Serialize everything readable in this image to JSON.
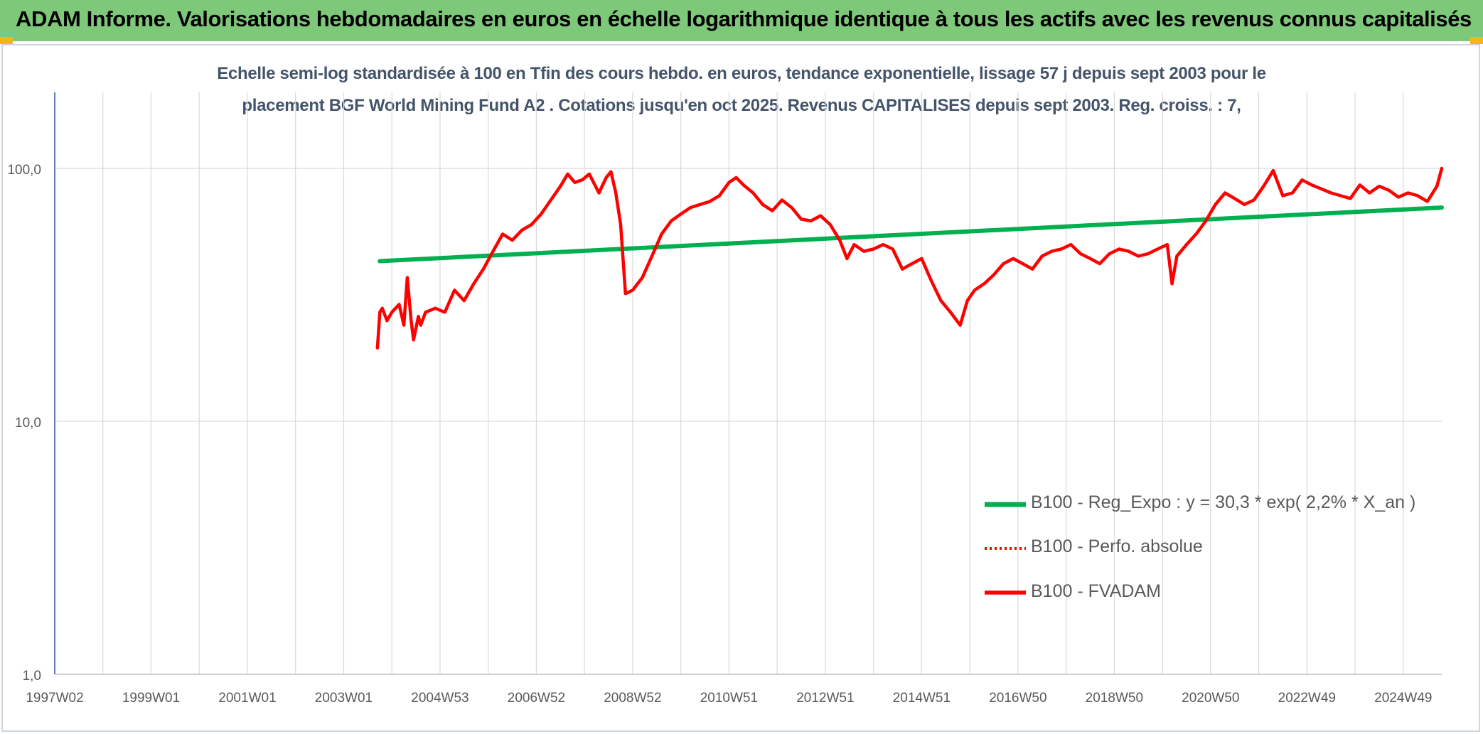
{
  "header": {
    "title": "ADAM Informe. Valorisations hebdomadaires en euros en échelle logarithmique identique à tous les actifs avec les revenus connus capitalisés"
  },
  "colors": {
    "header_band": "#7ec87a",
    "corner_accent": "#f2b51a",
    "subtitle_text": "#44546a",
    "reg_expo_series": "#00b050",
    "fvadam_series": "#ff0000",
    "grid": "#d9d9d9",
    "y_axis_line": "#2f5597"
  },
  "chart_data": {
    "type": "line",
    "title_line1": "Echelle semi-log standardisée à 100 en Tfin des cours hebdo. en euros, tendance exponentielle, lissage 57 j depuis sept 2003 pour le",
    "title_line2": "placement BGF World Mining Fund A2 . Cotations jusqu'en oct 2025. Revenus CAPITALISES depuis sept 2003. Reg. croiss. : 7,",
    "xlabel": "",
    "ylabel": "",
    "y_scale": "log",
    "ylim": [
      1,
      100
    ],
    "xlim": [
      1997.0,
      2025.8
    ],
    "grid": true,
    "legend_position": "lower-right",
    "y_ticks": [
      {
        "value": 1,
        "label": "1,0"
      },
      {
        "value": 10,
        "label": "10,0"
      },
      {
        "value": 100,
        "label": "100,0"
      }
    ],
    "x_ticks": [
      {
        "x": 1997.0,
        "label": "1997W02"
      },
      {
        "x": 1999.0,
        "label": "1999W01"
      },
      {
        "x": 2001.0,
        "label": "2001W01"
      },
      {
        "x": 2003.0,
        "label": "2003W01"
      },
      {
        "x": 2005.0,
        "label": "2004W53"
      },
      {
        "x": 2007.0,
        "label": "2006W52"
      },
      {
        "x": 2009.0,
        "label": "2008W52"
      },
      {
        "x": 2011.0,
        "label": "2010W51"
      },
      {
        "x": 2013.0,
        "label": "2012W51"
      },
      {
        "x": 2015.0,
        "label": "2014W51"
      },
      {
        "x": 2017.0,
        "label": "2016W50"
      },
      {
        "x": 2019.0,
        "label": "2018W50"
      },
      {
        "x": 2021.0,
        "label": "2020W50"
      },
      {
        "x": 2023.0,
        "label": "2022W49"
      },
      {
        "x": 2025.0,
        "label": "2024W49"
      }
    ],
    "series": [
      {
        "name": "B100 - Reg_Expo : y = 30,3 * exp( 2,2% *  X_an )",
        "style": "solid",
        "x": [
          2003.75,
          2025.8
        ],
        "y": [
          43.0,
          70.0
        ]
      },
      {
        "name": "B100 - Perfo. absolue",
        "style": "dotted",
        "x": [],
        "y": []
      },
      {
        "name": "B100 - FVADAM",
        "style": "solid",
        "x": [
          2003.7,
          2003.75,
          2003.8,
          2003.9,
          2004.0,
          2004.15,
          2004.25,
          2004.32,
          2004.4,
          2004.45,
          2004.55,
          2004.6,
          2004.7,
          2004.9,
          2005.1,
          2005.3,
          2005.5,
          2005.7,
          2005.9,
          2006.1,
          2006.3,
          2006.5,
          2006.7,
          2006.9,
          2007.1,
          2007.3,
          2007.5,
          2007.65,
          2007.8,
          2007.95,
          2008.1,
          2008.3,
          2008.45,
          2008.55,
          2008.65,
          2008.75,
          2008.85,
          2009.0,
          2009.2,
          2009.4,
          2009.6,
          2009.8,
          2010.0,
          2010.2,
          2010.4,
          2010.6,
          2010.8,
          2011.0,
          2011.15,
          2011.3,
          2011.5,
          2011.7,
          2011.9,
          2012.1,
          2012.3,
          2012.5,
          2012.7,
          2012.9,
          2013.1,
          2013.3,
          2013.45,
          2013.6,
          2013.8,
          2014.0,
          2014.2,
          2014.4,
          2014.6,
          2014.8,
          2015.0,
          2015.2,
          2015.4,
          2015.6,
          2015.8,
          2015.95,
          2016.1,
          2016.3,
          2016.5,
          2016.7,
          2016.9,
          2017.1,
          2017.3,
          2017.5,
          2017.7,
          2017.9,
          2018.1,
          2018.3,
          2018.5,
          2018.7,
          2018.9,
          2019.1,
          2019.3,
          2019.5,
          2019.7,
          2019.9,
          2020.1,
          2020.2,
          2020.3,
          2020.5,
          2020.7,
          2020.9,
          2021.1,
          2021.3,
          2021.5,
          2021.7,
          2021.9,
          2022.1,
          2022.3,
          2022.5,
          2022.7,
          2022.9,
          2023.1,
          2023.3,
          2023.5,
          2023.7,
          2023.9,
          2024.1,
          2024.3,
          2024.5,
          2024.7,
          2024.9,
          2025.1,
          2025.3,
          2025.5,
          2025.7,
          2025.8
        ],
        "y": [
          19.5,
          27.0,
          28.0,
          25.0,
          27.0,
          29.0,
          24.0,
          37.0,
          25.0,
          21.0,
          26.0,
          24.0,
          27.0,
          28.0,
          27.0,
          33.0,
          30.0,
          35.0,
          40.0,
          47.0,
          55.0,
          52.0,
          57.0,
          60.0,
          66.0,
          75.0,
          85.0,
          95.0,
          88.0,
          90.0,
          95.0,
          80.0,
          92.0,
          97.0,
          80.0,
          60.0,
          32.0,
          33.0,
          37.0,
          45.0,
          55.0,
          62.0,
          66.0,
          70.0,
          72.0,
          74.0,
          78.0,
          88.0,
          92.0,
          86.0,
          80.0,
          72.0,
          68.0,
          75.0,
          70.0,
          63.0,
          62.0,
          65.0,
          60.0,
          52.0,
          44.0,
          50.0,
          47.0,
          48.0,
          50.0,
          48.0,
          40.0,
          42.0,
          44.0,
          36.0,
          30.0,
          27.0,
          24.0,
          30.0,
          33.0,
          35.0,
          38.0,
          42.0,
          44.0,
          42.0,
          40.0,
          45.0,
          47.0,
          48.0,
          50.0,
          46.0,
          44.0,
          42.0,
          46.0,
          48.0,
          47.0,
          45.0,
          46.0,
          48.0,
          50.0,
          35.0,
          45.0,
          50.0,
          55.0,
          62.0,
          72.0,
          80.0,
          76.0,
          72.0,
          75.0,
          85.0,
          98.0,
          78.0,
          80.0,
          90.0,
          86.0,
          83.0,
          80.0,
          78.0,
          76.0,
          86.0,
          80.0,
          85.0,
          82.0,
          77.0,
          80.0,
          78.0,
          74.0,
          85.0,
          100.0
        ]
      }
    ]
  }
}
